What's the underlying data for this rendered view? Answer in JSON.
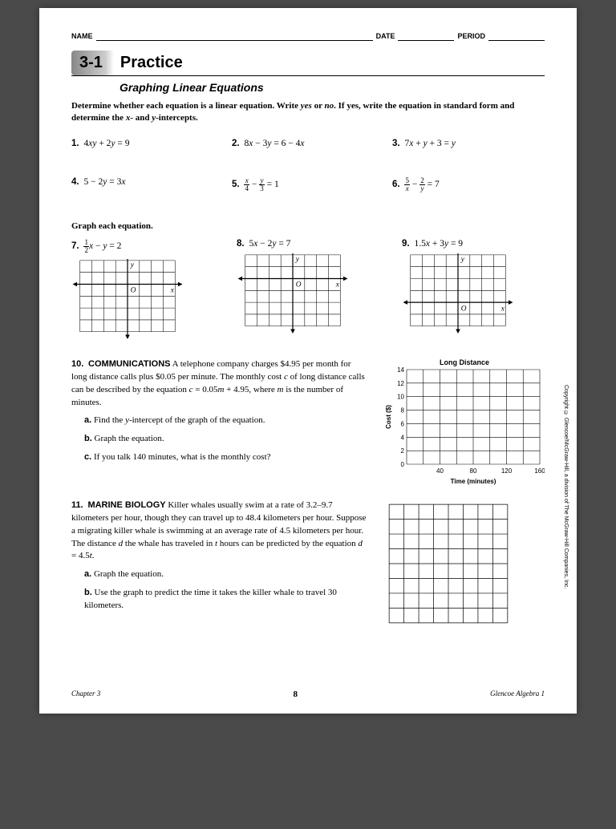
{
  "header": {
    "name": "NAME",
    "date": "DATE",
    "period": "PERIOD"
  },
  "lesson": {
    "number": "3-1",
    "title": "Practice",
    "subtitle": "Graphing Linear Equations"
  },
  "instructions1": "Determine whether each equation is a linear equation. Write yes or no. If yes, write the equation in standard form and determine the x- and y-intercepts.",
  "problems": {
    "p1": "4xy + 2y = 9",
    "p2": "8x − 3y = 6 − 4x",
    "p3": "7x + y + 3 = y",
    "p4": "5 − 2y = 3x"
  },
  "instructions2": "Graph each equation.",
  "graph_problems": {
    "p8": "5x − 2y = 7",
    "p9": "1.5x + 3y = 9"
  },
  "word10": {
    "tag": "COMMUNICATIONS",
    "body": "A telephone company charges $4.95 per month for long distance calls plus $0.05 per minute. The monthly cost c of long distance calls can be described by the equation c = 0.05m + 4.95, where m is the number of minutes.",
    "a": "Find the y-intercept of the graph of the equation.",
    "b": "Graph the equation.",
    "c": "If you talk 140 minutes, what is the monthly cost?",
    "chart": {
      "title": "Long Distance",
      "ylabel": "Cost ($)",
      "xlabel": "Time (minutes)",
      "yticks": [
        "0",
        "2",
        "4",
        "6",
        "8",
        "10",
        "12",
        "14"
      ],
      "xticks": [
        "40",
        "80",
        "120",
        "160"
      ]
    }
  },
  "word11": {
    "tag": "MARINE BIOLOGY",
    "body": "Killer whales usually swim at a rate of 3.2–9.7 kilometers per hour, though they can travel up to 48.4 kilometers per hour. Suppose a migrating killer whale is swimming at an average rate of 4.5 kilometers per hour. The distance d the whale has traveled in t hours can be predicted by the equation d = 4.5t.",
    "a": "Graph the equation.",
    "b": "Use the graph to predict the time it takes the killer whale to travel 30 kilometers."
  },
  "footer": {
    "left": "Chapter 3",
    "page": "8",
    "right": "Glencoe Algebra 1"
  },
  "copyright": "Copyright © Glencoe/McGraw-Hill, a division of The McGraw-Hill Companies, Inc.",
  "grid_style": {
    "cols": 8,
    "rows": 6,
    "cell": 16,
    "stroke": "#000000",
    "width": 1
  },
  "blank_grid": {
    "cols": 8,
    "rows": 8,
    "cell": 18
  }
}
